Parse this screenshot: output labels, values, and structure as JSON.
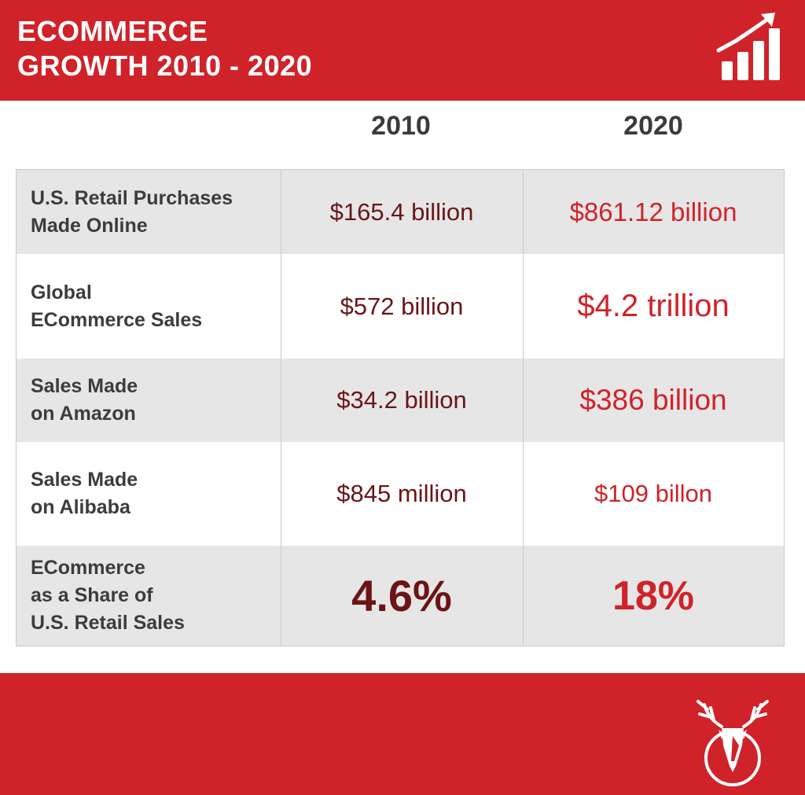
{
  "colors": {
    "brand": "#cf2329",
    "dark_red": "#6b1416"
  },
  "header": {
    "title_line1": "ECOMMERCE",
    "title_line2": "GROWTH 2010 - 2020",
    "icon": "bar-chart-growth-icon"
  },
  "table": {
    "columns": [
      "2010",
      "2020"
    ],
    "rows": [
      {
        "label_lines": [
          "U.S. Retail Purchases",
          "Made Online"
        ],
        "value_2010": "$165.4 billion",
        "value_2020": "$861.12 billion"
      },
      {
        "label_lines": [
          "Global",
          "ECommerce Sales"
        ],
        "value_2010": "$572 billion",
        "value_2020": "$4.2 trillion"
      },
      {
        "label_lines": [
          "Sales Made",
          "on Amazon"
        ],
        "value_2010": "$34.2 billion",
        "value_2020": "$386 billion"
      },
      {
        "label_lines": [
          "Sales Made",
          "on Alibaba"
        ],
        "value_2010": "$845 million",
        "value_2020": "$109 billon"
      },
      {
        "label_lines": [
          "ECommerce",
          "as a Share of",
          "U.S. Retail Sales"
        ],
        "value_2010": "4.6%",
        "value_2020": "18%"
      }
    ]
  },
  "footer": {
    "logo": "deer-head-logo-icon"
  }
}
